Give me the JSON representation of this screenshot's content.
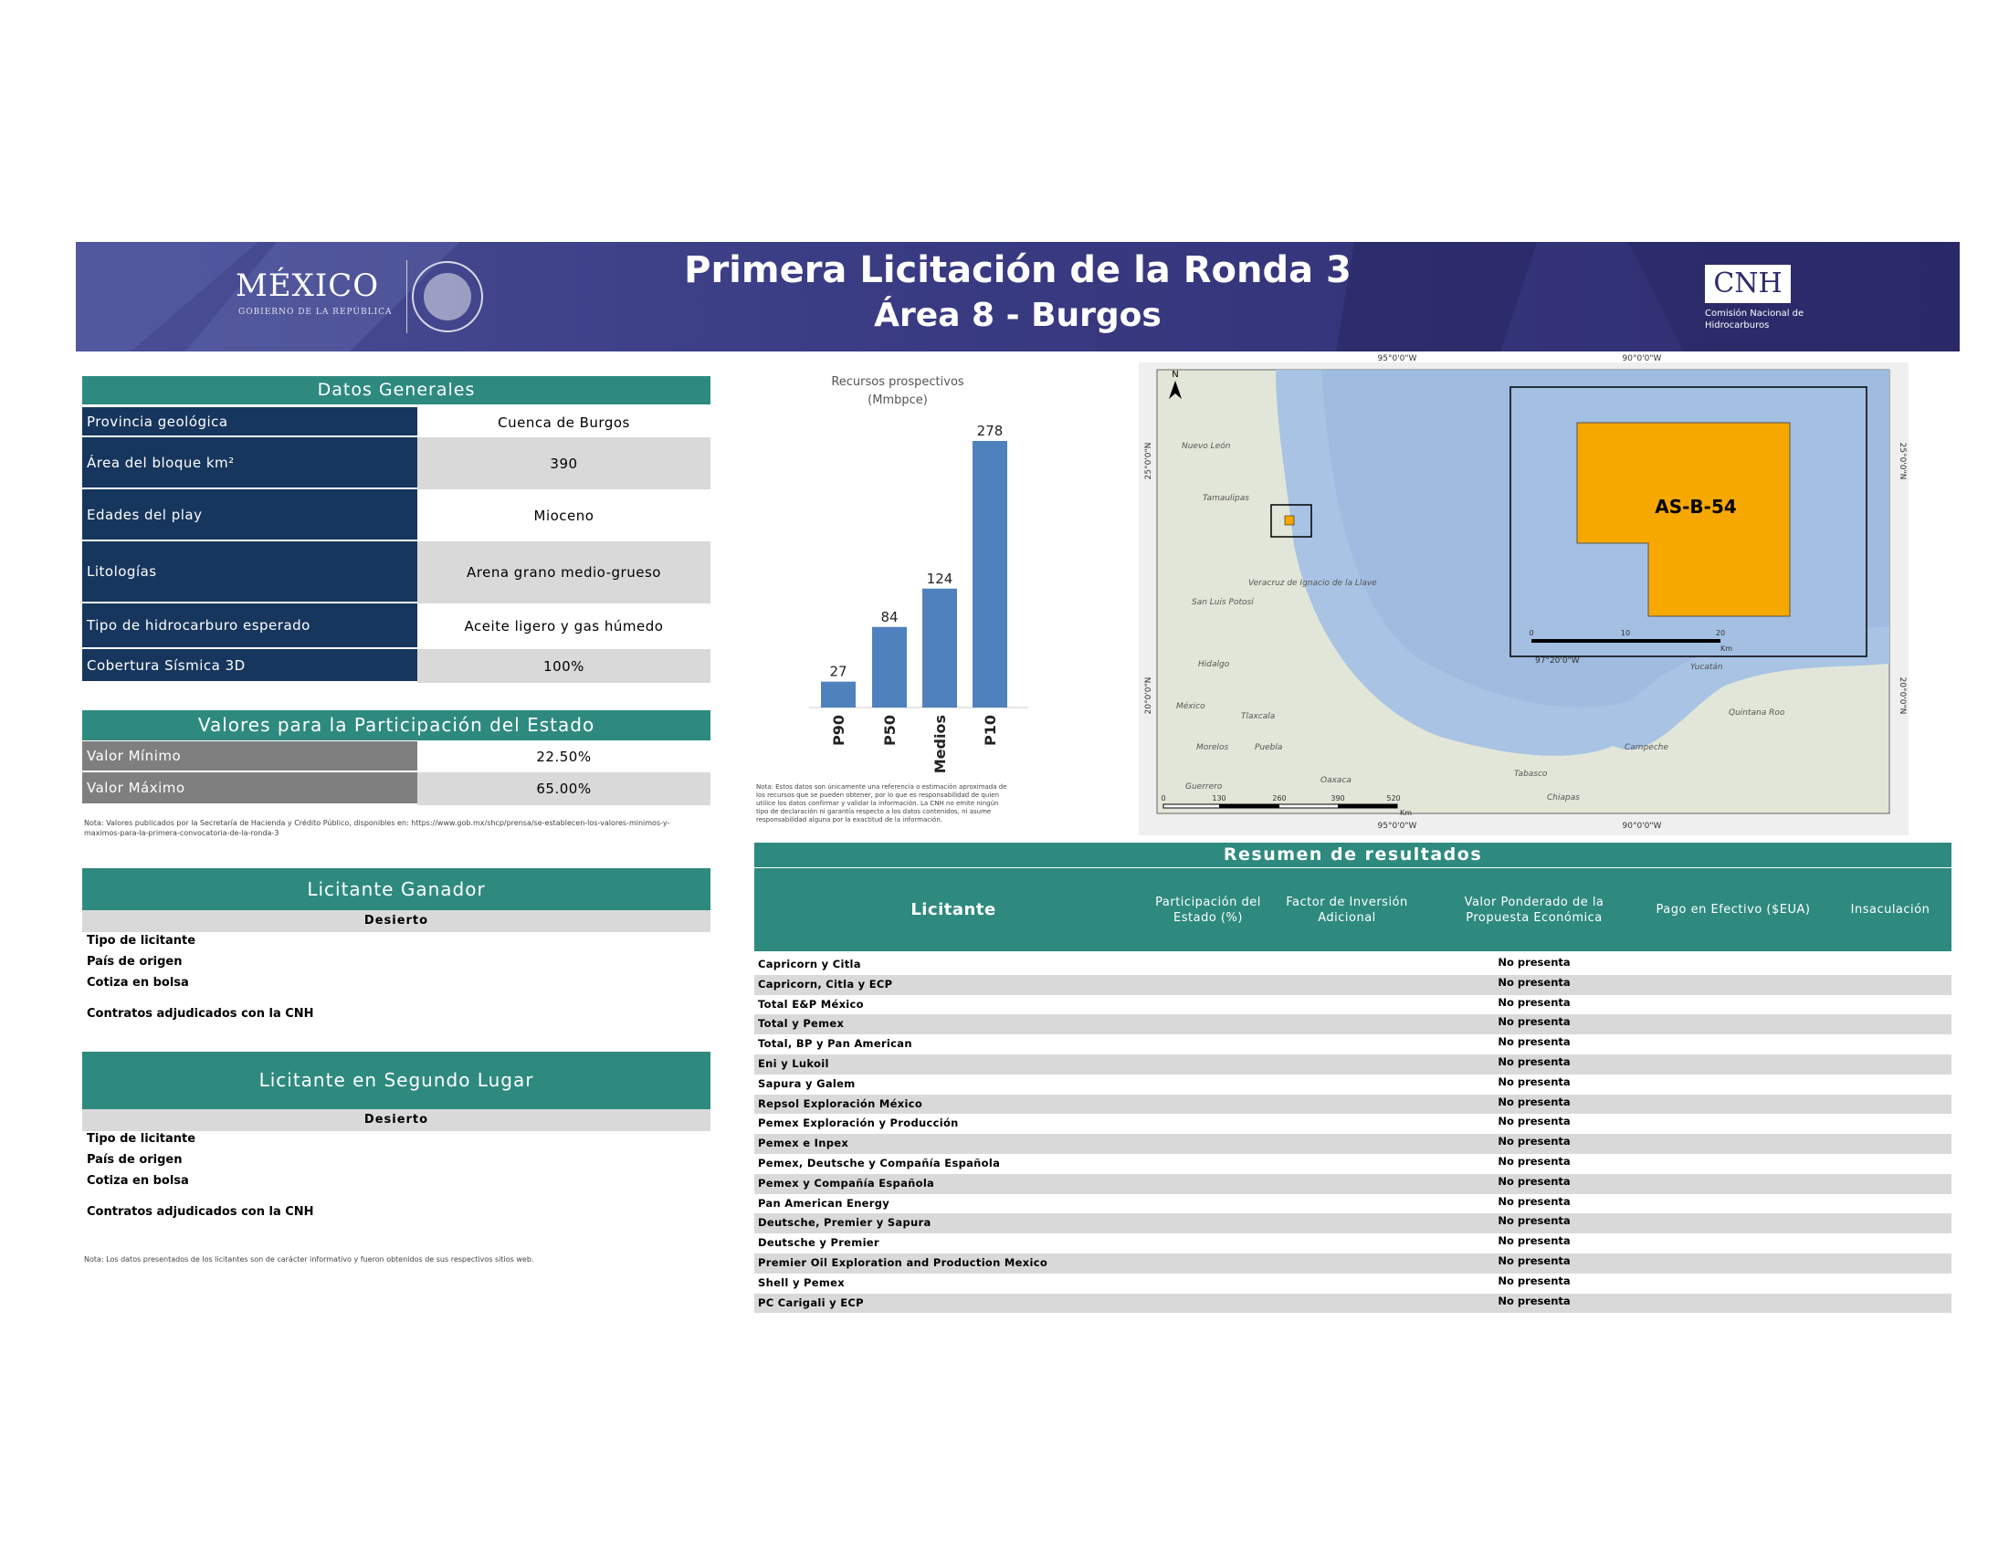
{
  "header": {
    "title": "Primera Licitación de la Ronda 3",
    "subtitle": "Área 8 - Burgos",
    "logo_left": "MÉXICO",
    "logo_left_sub": "GOBIERNO DE LA REPÚBLICA",
    "logo_right": "CNH",
    "logo_right_sub": "Comisión Nacional de Hidrocarburos"
  },
  "datos_generales": {
    "title": "Datos Generales",
    "rows": [
      {
        "label": "Provincia geológica",
        "value": "Cuenca de Burgos"
      },
      {
        "label": "Área del bloque km²",
        "value": "390"
      },
      {
        "label": "Edades del play",
        "value": "Mioceno"
      },
      {
        "label": "Litologías",
        "value": "Arena grano medio-grueso"
      },
      {
        "label": "Tipo de hidrocarburo esperado",
        "value": "Aceite ligero y gas húmedo"
      },
      {
        "label": "Cobertura Sísmica 3D",
        "value": "100%"
      }
    ]
  },
  "participacion": {
    "title": "Valores para la Participación del Estado",
    "rows": [
      {
        "label": "Valor Mínimo",
        "value": "22.50%"
      },
      {
        "label": "Valor Máximo",
        "value": "65.00%"
      }
    ],
    "note": "Nota: Valores publicados por la Secretaría de Hacienda y Crédito Público, disponibles en: https://www.gob.mx/shcp/prensa/se-establecen-los-valores-minimos-y-maximos-para-la-primera-convocatoria-de-la-ronda-3"
  },
  "chart_data": {
    "type": "bar",
    "title": "Recursos prospectivos",
    "subtitle": "(Mmbpce)",
    "categories": [
      "P90",
      "P50",
      "Medios",
      "P10"
    ],
    "values": [
      27,
      84,
      124,
      278
    ],
    "color": "#4f81bd",
    "note": "Nota: Estos datos son únicamente una referencia o estimación aproximada de los recursos que se pueden obtener, por lo que es responsabilidad de quien utilice los datos confirmar y validar la información. La CNH no emite ningún tipo de declaración ni garantía respecto a los datos contenidos, ni asume responsabilidad alguna por la exactitud de la información."
  },
  "map": {
    "block_label": "AS-B-54",
    "coords_top": [
      "95°0'0\"W",
      "90°0'0\"W"
    ],
    "coords_bottom": [
      "95°0'0\"W",
      "90°0'0\"W"
    ],
    "coords_side": [
      "25°0'0\"N",
      "20°0'0\"N"
    ],
    "inset_coord": "97°20'0\"W",
    "scale": [
      "0",
      "130",
      "260",
      "390",
      "520"
    ],
    "scale_unit": "Km",
    "inset_scale": [
      "0",
      "10",
      "20"
    ],
    "places": [
      "Nuevo León",
      "Tamaulipas",
      "San Luis Potosí",
      "Veracruz de Ignacio de la Llave",
      "Hidalgo",
      "México",
      "Tlaxcala",
      "Puebla",
      "Morelos",
      "Guerrero",
      "Oaxaca",
      "Tabasco",
      "Chiapas",
      "Campeche",
      "Yucatán",
      "Quintana Roo"
    ]
  },
  "ganador": {
    "title": "Licitante Ganador",
    "status": "Desierto",
    "fields": [
      "Tipo de licitante",
      "País de origen",
      "Cotiza en bolsa",
      "Contratos adjudicados con la CNH"
    ]
  },
  "segundo": {
    "title": "Licitante en Segundo Lugar",
    "status": "Desierto",
    "fields": [
      "Tipo de licitante",
      "País de origen",
      "Cotiza en bolsa",
      "Contratos adjudicados con la CNH"
    ]
  },
  "bottom_note": "Nota: Los datos presentados de los licitantes son de carácter informativo y fueron obtenidos de sus respectivos sitios web.",
  "resumen": {
    "title": "Resumen de resultados",
    "columns": [
      "Licitante",
      "Participación del Estado (%)",
      "Factor de Inversión Adicional",
      "Valor Ponderado de la Propuesta Económica",
      "Pago en Efectivo ($EUA)",
      "Insaculación"
    ],
    "rows": [
      {
        "licitante": "Capricorn y Citla",
        "valor": "No presenta"
      },
      {
        "licitante": "Capricorn, Citla y ECP",
        "valor": "No presenta"
      },
      {
        "licitante": "Total E&P México",
        "valor": "No presenta"
      },
      {
        "licitante": "Total y Pemex",
        "valor": "No presenta"
      },
      {
        "licitante": "Total, BP y Pan American",
        "valor": "No presenta"
      },
      {
        "licitante": "Eni y Lukoil",
        "valor": "No presenta"
      },
      {
        "licitante": "Sapura y Galem",
        "valor": "No presenta"
      },
      {
        "licitante": "Repsol Exploración México",
        "valor": "No presenta"
      },
      {
        "licitante": "Pemex Exploración y Producción",
        "valor": "No presenta"
      },
      {
        "licitante": "Pemex e Inpex",
        "valor": "No presenta"
      },
      {
        "licitante": "Pemex, Deutsche y Compañía Española",
        "valor": "No presenta"
      },
      {
        "licitante": "Pemex y Compañía Española",
        "valor": "No presenta"
      },
      {
        "licitante": "Pan American Energy",
        "valor": "No presenta"
      },
      {
        "licitante": "Deutsche, Premier y Sapura",
        "valor": "No presenta"
      },
      {
        "licitante": "Deutsche y Premier",
        "valor": "No presenta"
      },
      {
        "licitante": "Premier Oil Exploration and Production Mexico",
        "valor": "No presenta"
      },
      {
        "licitante": "Shell y Pemex",
        "valor": "No presenta"
      },
      {
        "licitante": "PC Carigali y ECP",
        "valor": "No presenta"
      }
    ]
  }
}
